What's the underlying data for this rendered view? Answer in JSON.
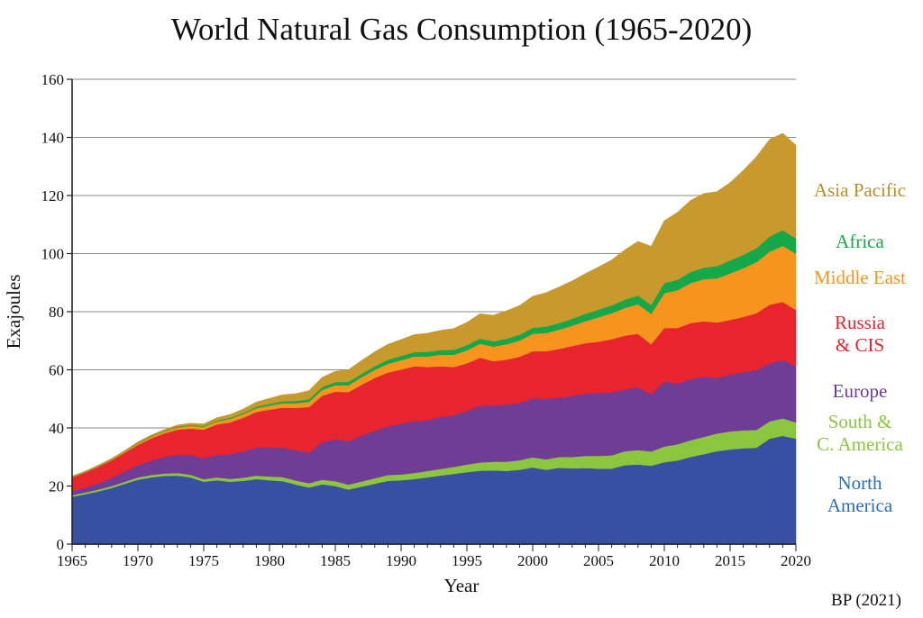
{
  "chart_data": {
    "type": "area",
    "stacked": true,
    "title": "World Natural Gas Consumption (1965-2020)",
    "xlabel": "Year",
    "ylabel": "Exajoules",
    "source": "BP (2021)",
    "xlim": [
      1965,
      2020
    ],
    "ylim": [
      0,
      160
    ],
    "xticks": [
      "1965",
      "1970",
      "1975",
      "1980",
      "1985",
      "1990",
      "1995",
      "2000",
      "2005",
      "2010",
      "2015",
      "2020"
    ],
    "yticks": [
      "0",
      "20",
      "40",
      "60",
      "80",
      "100",
      "120",
      "140",
      "160"
    ],
    "grid": true,
    "x": [
      1965,
      1966,
      1967,
      1968,
      1969,
      1970,
      1971,
      1972,
      1973,
      1974,
      1975,
      1976,
      1977,
      1978,
      1979,
      1980,
      1981,
      1982,
      1983,
      1984,
      1985,
      1986,
      1987,
      1988,
      1989,
      1990,
      1991,
      1992,
      1993,
      1994,
      1995,
      1996,
      1997,
      1998,
      1999,
      2000,
      2001,
      2002,
      2003,
      2004,
      2005,
      2006,
      2007,
      2008,
      2009,
      2010,
      2011,
      2012,
      2013,
      2014,
      2015,
      2016,
      2017,
      2018,
      2019,
      2020
    ],
    "series": [
      {
        "name": "North America",
        "color": "#3650a2",
        "values": [
          16.3,
          17.2,
          18.2,
          19.3,
          20.8,
          22.2,
          23.0,
          23.5,
          23.6,
          23.0,
          21.5,
          22.0,
          21.5,
          21.8,
          22.4,
          22.0,
          21.7,
          20.5,
          19.5,
          20.6,
          20.0,
          18.8,
          19.8,
          20.8,
          21.8,
          22.0,
          22.4,
          23.0,
          23.6,
          24.2,
          24.8,
          25.3,
          25.4,
          25.2,
          25.6,
          26.4,
          25.6,
          26.3,
          26.1,
          26.2,
          26.0,
          26.0,
          27.2,
          27.4,
          27.0,
          28.2,
          28.8,
          30.0,
          31.0,
          32.0,
          32.6,
          33.0,
          33.2,
          36.3,
          37.3,
          36.3
        ]
      },
      {
        "name": "South & C. America",
        "color": "#8cc63f",
        "values": [
          0.6,
          0.6,
          0.6,
          0.7,
          0.7,
          0.8,
          0.8,
          0.8,
          0.9,
          0.9,
          0.9,
          1.0,
          1.0,
          1.1,
          1.2,
          1.3,
          1.4,
          1.4,
          1.5,
          1.6,
          1.7,
          1.7,
          1.8,
          1.9,
          2.0,
          2.0,
          2.1,
          2.2,
          2.3,
          2.4,
          2.6,
          2.8,
          3.0,
          3.2,
          3.3,
          3.5,
          3.6,
          3.7,
          3.9,
          4.2,
          4.4,
          4.6,
          4.8,
          5.0,
          4.9,
          5.4,
          5.6,
          5.8,
          5.9,
          6.1,
          6.2,
          6.2,
          6.1,
          6.0,
          6.0,
          5.6
        ]
      },
      {
        "name": "Europe",
        "color": "#6f3c96",
        "values": [
          1.3,
          1.7,
          2.2,
          2.8,
          3.5,
          4.2,
          5.0,
          5.7,
          6.3,
          6.8,
          7.2,
          7.8,
          8.4,
          9.0,
          9.7,
          10.0,
          10.2,
          10.4,
          10.6,
          12.9,
          14.5,
          15.0,
          15.8,
          16.3,
          16.8,
          17.5,
          17.8,
          17.5,
          17.8,
          17.8,
          18.5,
          19.6,
          19.3,
          19.6,
          19.7,
          20.3,
          20.8,
          20.4,
          21.0,
          21.4,
          21.7,
          21.6,
          21.3,
          21.6,
          19.8,
          22.4,
          20.8,
          21.0,
          20.7,
          19.2,
          19.6,
          20.0,
          20.6,
          19.9,
          20.1,
          19.3
        ]
      },
      {
        "name": "Russia & CIS",
        "color": "#e8242e",
        "values": [
          4.8,
          5.2,
          5.7,
          6.1,
          6.5,
          7.0,
          7.6,
          8.1,
          8.6,
          9.1,
          9.8,
          10.4,
          11.0,
          11.6,
          12.2,
          13.0,
          13.7,
          14.6,
          15.6,
          16.0,
          16.3,
          16.8,
          17.5,
          18.2,
          18.5,
          18.6,
          18.9,
          18.3,
          17.5,
          16.6,
          16.3,
          16.5,
          15.3,
          15.5,
          15.9,
          16.2,
          16.4,
          16.8,
          17.2,
          17.4,
          17.6,
          18.3,
          18.5,
          18.4,
          17.1,
          18.4,
          19.2,
          19.3,
          19.1,
          19.0,
          18.8,
          19.0,
          19.6,
          20.2,
          20.0,
          19.4
        ]
      },
      {
        "name": "Middle East",
        "color": "#f7941d",
        "values": [
          0.2,
          0.2,
          0.3,
          0.3,
          0.4,
          0.5,
          0.6,
          0.7,
          0.8,
          0.9,
          1.0,
          1.1,
          1.2,
          1.3,
          1.3,
          1.4,
          1.5,
          1.6,
          1.8,
          2.0,
          2.2,
          2.4,
          2.6,
          2.8,
          3.0,
          3.2,
          3.4,
          3.6,
          4.0,
          4.2,
          4.5,
          4.8,
          5.0,
          5.3,
          5.6,
          6.0,
          6.3,
          6.6,
          7.0,
          7.6,
          8.4,
          9.0,
          9.5,
          10.2,
          10.5,
          12.0,
          13.0,
          13.8,
          14.5,
          15.2,
          16.0,
          16.8,
          17.6,
          18.3,
          19.3,
          19.4
        ]
      },
      {
        "name": "Africa",
        "color": "#15a84a",
        "values": [
          0.1,
          0.1,
          0.1,
          0.1,
          0.1,
          0.2,
          0.2,
          0.2,
          0.3,
          0.3,
          0.3,
          0.3,
          0.4,
          0.4,
          0.5,
          0.6,
          0.7,
          0.8,
          0.9,
          1.0,
          1.1,
          1.2,
          1.2,
          1.3,
          1.4,
          1.5,
          1.5,
          1.6,
          1.6,
          1.7,
          1.8,
          1.8,
          1.8,
          1.9,
          2.0,
          2.1,
          2.2,
          2.3,
          2.4,
          2.5,
          2.6,
          2.7,
          2.9,
          3.0,
          3.1,
          3.5,
          3.6,
          3.8,
          4.0,
          4.2,
          4.5,
          4.6,
          4.8,
          5.2,
          5.4,
          5.2
        ]
      },
      {
        "name": "Asia Pacific",
        "color": "#c89a2e",
        "values": [
          0.1,
          0.1,
          0.1,
          0.2,
          0.2,
          0.3,
          0.3,
          0.4,
          0.5,
          0.6,
          0.7,
          0.9,
          1.1,
          1.3,
          1.6,
          1.9,
          2.2,
          2.5,
          2.9,
          3.3,
          3.7,
          4.1,
          4.5,
          4.9,
          5.3,
          5.6,
          6.0,
          6.4,
          6.8,
          7.3,
          7.8,
          8.5,
          9.0,
          9.6,
          10.0,
          10.8,
          11.6,
          12.4,
          13.0,
          13.8,
          14.7,
          15.6,
          17.1,
          18.6,
          20.1,
          21.4,
          23.2,
          24.6,
          25.5,
          25.6,
          26.7,
          29.0,
          31.4,
          33.4,
          33.3,
          32.1
        ]
      }
    ],
    "legend": [
      {
        "lines": [
          "Asia Pacific"
        ],
        "color": "#b98e28"
      },
      {
        "lines": [
          "Africa"
        ],
        "color": "#15a84a"
      },
      {
        "lines": [
          "Middle East"
        ],
        "color": "#f7941d"
      },
      {
        "lines": [
          "Russia",
          "& CIS"
        ],
        "color": "#e8242e"
      },
      {
        "lines": [
          "Europe"
        ],
        "color": "#6f3c96"
      },
      {
        "lines": [
          "South &",
          "C. America"
        ],
        "color": "#8cc63f"
      },
      {
        "lines": [
          "North",
          "America"
        ],
        "color": "#2d6db4"
      }
    ]
  }
}
